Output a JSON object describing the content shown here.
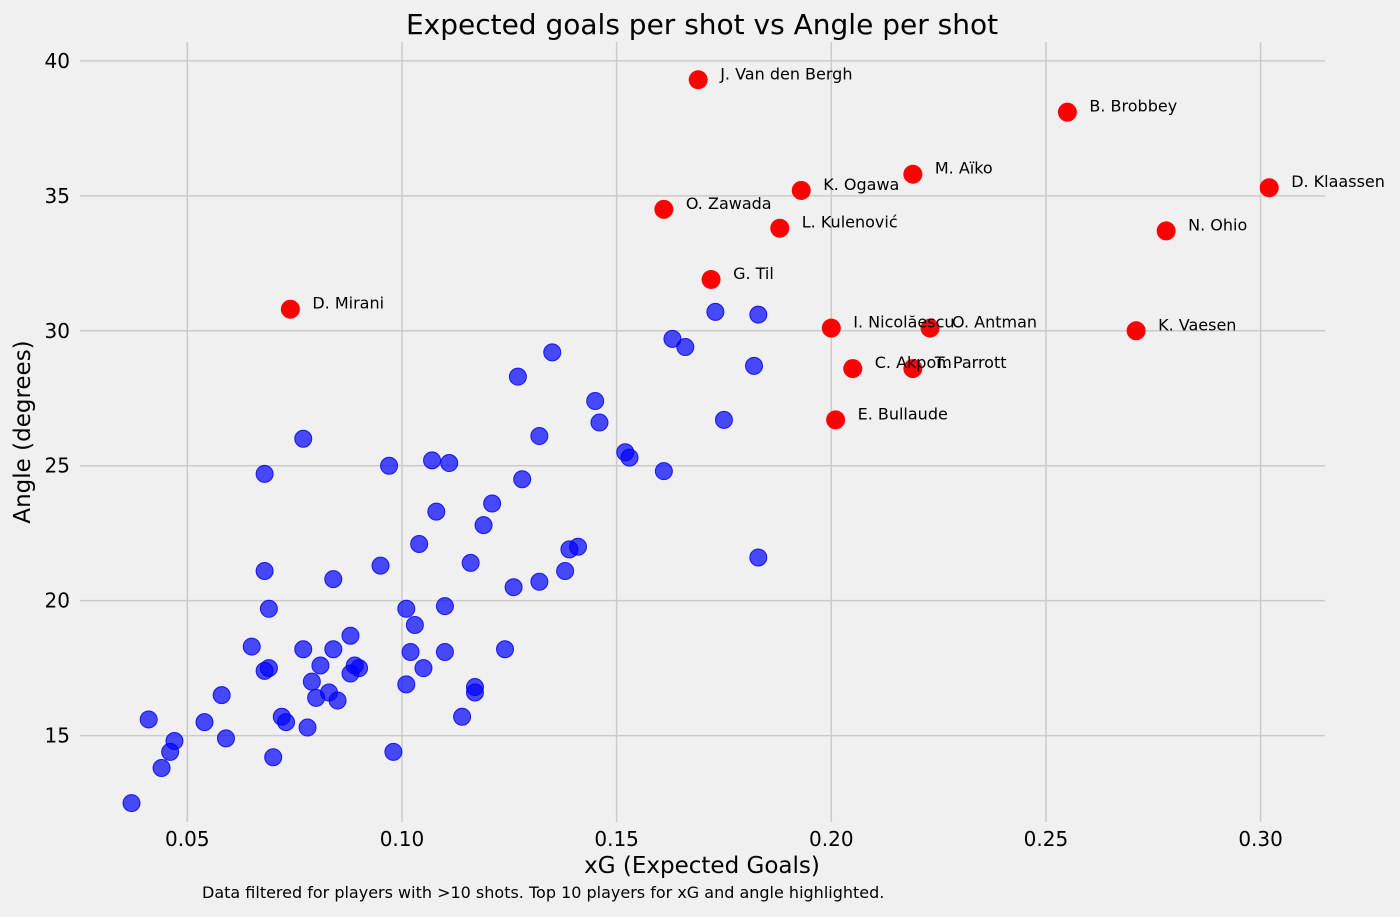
{
  "chart_data": {
    "type": "scatter",
    "title": "Expected goals per shot vs Angle per shot",
    "xlabel": "xG (Expected Goals)",
    "ylabel": "Angle (degrees)",
    "footnote": "Data filtered for players with >10 shots. Top 10 players for xG and angle highlighted.",
    "xlim": [
      0.025,
      0.315
    ],
    "ylim": [
      11.8,
      40.7
    ],
    "x_ticks": [
      0.05,
      0.1,
      0.15,
      0.2,
      0.25,
      0.3
    ],
    "x_tick_labels": [
      "0.05",
      "0.10",
      "0.15",
      "0.20",
      "0.25",
      "0.30"
    ],
    "y_ticks": [
      15,
      20,
      25,
      30,
      35,
      40
    ],
    "y_tick_labels": [
      "15",
      "20",
      "25",
      "30",
      "35",
      "40"
    ],
    "grid": true,
    "colors": {
      "background": "#f0f0f0",
      "grid": "#cbcbcb",
      "others": "#0000ff",
      "highlighted": "#ff0000",
      "text": "#000000"
    },
    "series": [
      {
        "color": "#0000ff",
        "points": [
          {
            "x": 0.037,
            "y": 12.5
          },
          {
            "x": 0.041,
            "y": 15.6
          },
          {
            "x": 0.044,
            "y": 13.8
          },
          {
            "x": 0.046,
            "y": 14.4
          },
          {
            "x": 0.047,
            "y": 14.8
          },
          {
            "x": 0.054,
            "y": 15.5
          },
          {
            "x": 0.058,
            "y": 16.5
          },
          {
            "x": 0.059,
            "y": 14.9
          },
          {
            "x": 0.065,
            "y": 18.3
          },
          {
            "x": 0.068,
            "y": 21.1
          },
          {
            "x": 0.068,
            "y": 24.7
          },
          {
            "x": 0.068,
            "y": 17.4
          },
          {
            "x": 0.069,
            "y": 17.5
          },
          {
            "x": 0.069,
            "y": 19.7
          },
          {
            "x": 0.07,
            "y": 14.2
          },
          {
            "x": 0.072,
            "y": 15.7
          },
          {
            "x": 0.073,
            "y": 15.5
          },
          {
            "x": 0.077,
            "y": 26.0
          },
          {
            "x": 0.077,
            "y": 18.2
          },
          {
            "x": 0.078,
            "y": 15.3
          },
          {
            "x": 0.079,
            "y": 17.0
          },
          {
            "x": 0.08,
            "y": 16.4
          },
          {
            "x": 0.081,
            "y": 17.6
          },
          {
            "x": 0.083,
            "y": 16.6
          },
          {
            "x": 0.084,
            "y": 18.2
          },
          {
            "x": 0.084,
            "y": 20.8
          },
          {
            "x": 0.085,
            "y": 16.3
          },
          {
            "x": 0.088,
            "y": 17.3
          },
          {
            "x": 0.088,
            "y": 18.7
          },
          {
            "x": 0.089,
            "y": 17.6
          },
          {
            "x": 0.09,
            "y": 17.5
          },
          {
            "x": 0.095,
            "y": 21.3
          },
          {
            "x": 0.097,
            "y": 25.0
          },
          {
            "x": 0.098,
            "y": 14.4
          },
          {
            "x": 0.101,
            "y": 19.7
          },
          {
            "x": 0.101,
            "y": 16.9
          },
          {
            "x": 0.102,
            "y": 18.1
          },
          {
            "x": 0.103,
            "y": 19.1
          },
          {
            "x": 0.104,
            "y": 22.1
          },
          {
            "x": 0.105,
            "y": 17.5
          },
          {
            "x": 0.107,
            "y": 25.2
          },
          {
            "x": 0.108,
            "y": 23.3
          },
          {
            "x": 0.11,
            "y": 18.1
          },
          {
            "x": 0.11,
            "y": 19.8
          },
          {
            "x": 0.111,
            "y": 25.1
          },
          {
            "x": 0.114,
            "y": 15.7
          },
          {
            "x": 0.116,
            "y": 21.4
          },
          {
            "x": 0.117,
            "y": 16.8
          },
          {
            "x": 0.117,
            "y": 16.6
          },
          {
            "x": 0.119,
            "y": 22.8
          },
          {
            "x": 0.121,
            "y": 23.6
          },
          {
            "x": 0.124,
            "y": 18.2
          },
          {
            "x": 0.126,
            "y": 20.5
          },
          {
            "x": 0.127,
            "y": 28.3
          },
          {
            "x": 0.128,
            "y": 24.5
          },
          {
            "x": 0.132,
            "y": 20.7
          },
          {
            "x": 0.132,
            "y": 26.1
          },
          {
            "x": 0.135,
            "y": 29.2
          },
          {
            "x": 0.138,
            "y": 21.1
          },
          {
            "x": 0.139,
            "y": 21.9
          },
          {
            "x": 0.141,
            "y": 22.0
          },
          {
            "x": 0.145,
            "y": 27.4
          },
          {
            "x": 0.146,
            "y": 26.6
          },
          {
            "x": 0.152,
            "y": 25.5
          },
          {
            "x": 0.153,
            "y": 25.3
          },
          {
            "x": 0.161,
            "y": 24.8
          },
          {
            "x": 0.163,
            "y": 29.7
          },
          {
            "x": 0.166,
            "y": 29.4
          },
          {
            "x": 0.173,
            "y": 30.7
          },
          {
            "x": 0.175,
            "y": 26.7
          },
          {
            "x": 0.182,
            "y": 28.7
          },
          {
            "x": 0.183,
            "y": 30.6
          },
          {
            "x": 0.183,
            "y": 21.6
          }
        ]
      },
      {
        "color": "#ff0000",
        "points": [
          {
            "x": 0.074,
            "y": 30.8,
            "label": "D. Mirani"
          },
          {
            "x": 0.161,
            "y": 34.5,
            "label": "O. Zawada"
          },
          {
            "x": 0.169,
            "y": 39.3,
            "label": "J. Van den Bergh"
          },
          {
            "x": 0.172,
            "y": 31.9,
            "label": "G. Til"
          },
          {
            "x": 0.188,
            "y": 33.8,
            "label": "L. Kulenović"
          },
          {
            "x": 0.193,
            "y": 35.2,
            "label": "K. Ogawa"
          },
          {
            "x": 0.2,
            "y": 30.1,
            "label": "I. Nicolăescu"
          },
          {
            "x": 0.201,
            "y": 26.7,
            "label": "E. Bullaude"
          },
          {
            "x": 0.205,
            "y": 28.6,
            "label": "C. Akpom"
          },
          {
            "x": 0.219,
            "y": 35.8,
            "label": "M. Aïko"
          },
          {
            "x": 0.219,
            "y": 28.6,
            "label": "T. Parrott"
          },
          {
            "x": 0.223,
            "y": 30.1,
            "label": "O. Antman"
          },
          {
            "x": 0.255,
            "y": 38.1,
            "label": "B. Brobbey"
          },
          {
            "x": 0.271,
            "y": 30.0,
            "label": "K. Vaesen"
          },
          {
            "x": 0.278,
            "y": 33.7,
            "label": "N. Ohio"
          },
          {
            "x": 0.302,
            "y": 35.3,
            "label": "D. Klaassen"
          }
        ]
      }
    ]
  }
}
